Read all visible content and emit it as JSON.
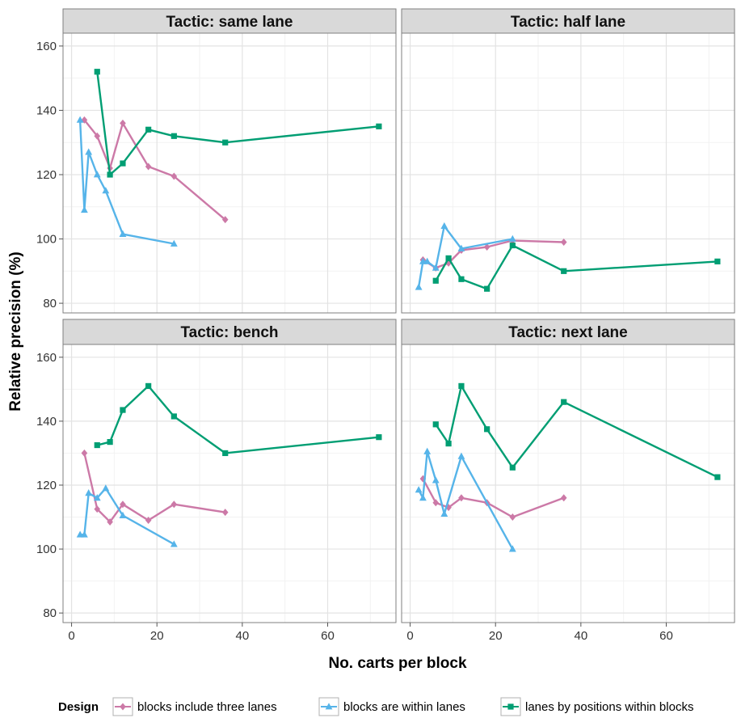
{
  "chart_data": {
    "type": "line",
    "xlabel": "No. carts per block",
    "ylabel": "Relative precision (%)",
    "xlim": [
      -2,
      76
    ],
    "ylim": [
      77,
      164
    ],
    "xticks": [
      0,
      20,
      40,
      60
    ],
    "yticks": [
      80,
      100,
      120,
      140,
      160
    ],
    "grid": true,
    "legend": {
      "title": "Design",
      "placement": "bottom",
      "entries": [
        {
          "name": "blocks include three lanes",
          "color": "#cc79a7",
          "marker": "diamond"
        },
        {
          "name": "blocks are within lanes",
          "color": "#56b4e9",
          "marker": "triangle"
        },
        {
          "name": "lanes by positions within blocks",
          "color": "#009e73",
          "marker": "square"
        }
      ]
    },
    "panels": [
      {
        "title": "Tactic: same lane",
        "series": [
          {
            "name": "blocks include three lanes",
            "x": [
              3,
              6,
              9,
              12,
              18,
              24,
              36
            ],
            "y": [
              137,
              132,
              122,
              136,
              122.5,
              119.5,
              106
            ]
          },
          {
            "name": "blocks are within lanes",
            "x": [
              2,
              3,
              4,
              6,
              8,
              12,
              24
            ],
            "y": [
              137,
              109,
              127,
              120,
              115,
              101.5,
              98.5
            ]
          },
          {
            "name": "lanes by positions within blocks",
            "x": [
              6,
              9,
              12,
              18,
              24,
              36,
              72
            ],
            "y": [
              152,
              120,
              123.5,
              134,
              132,
              130,
              135
            ]
          }
        ]
      },
      {
        "title": "Tactic: half lane",
        "series": [
          {
            "name": "blocks include three lanes",
            "x": [
              3,
              6,
              9,
              12,
              18,
              24,
              36
            ],
            "y": [
              93.5,
              91,
              92.5,
              96.5,
              97.5,
              99.5,
              99
            ]
          },
          {
            "name": "blocks are within lanes",
            "x": [
              2,
              3,
              4,
              6,
              8,
              12,
              24
            ],
            "y": [
              85,
              93,
              93,
              91,
              104,
              97,
              100
            ]
          },
          {
            "name": "lanes by positions within blocks",
            "x": [
              6,
              9,
              12,
              18,
              24,
              36,
              72
            ],
            "y": [
              87,
              94,
              87.5,
              84.5,
              98,
              90,
              93
            ]
          }
        ]
      },
      {
        "title": "Tactic: bench",
        "series": [
          {
            "name": "blocks include three lanes",
            "x": [
              3,
              6,
              9,
              12,
              18,
              24,
              36
            ],
            "y": [
              130,
              112.5,
              108.5,
              114,
              109,
              114,
              111.5
            ]
          },
          {
            "name": "blocks are within lanes",
            "x": [
              2,
              3,
              4,
              6,
              8,
              12,
              24
            ],
            "y": [
              104.5,
              104.5,
              117.5,
              116,
              119,
              110.5,
              101.5
            ]
          },
          {
            "name": "lanes by positions within blocks",
            "x": [
              6,
              9,
              12,
              18,
              24,
              36,
              72
            ],
            "y": [
              132.5,
              133.5,
              143.5,
              151,
              141.5,
              130,
              135
            ]
          }
        ]
      },
      {
        "title": "Tactic: next lane",
        "series": [
          {
            "name": "blocks include three lanes",
            "x": [
              3,
              6,
              9,
              12,
              18,
              24,
              36
            ],
            "y": [
              122,
              114.5,
              113,
              116,
              114.5,
              110,
              116
            ]
          },
          {
            "name": "blocks are within lanes",
            "x": [
              2,
              3,
              4,
              6,
              8,
              12,
              24
            ],
            "y": [
              118.5,
              116,
              130.5,
              121.5,
              111,
              129,
              100
            ]
          },
          {
            "name": "lanes by positions within blocks",
            "x": [
              6,
              9,
              12,
              18,
              24,
              36,
              72
            ],
            "y": [
              139,
              133,
              151,
              137.5,
              125.5,
              146,
              122.5
            ]
          }
        ]
      }
    ]
  }
}
